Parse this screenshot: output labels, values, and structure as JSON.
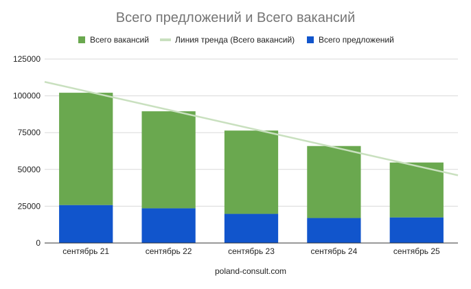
{
  "chart_data": {
    "type": "bar",
    "stacked": true,
    "title": "Всего предложений и Всего вакансий",
    "xlabel": "poland-consult.com",
    "ylabel": "",
    "ylim": [
      0,
      125000
    ],
    "yticks": [
      0,
      25000,
      50000,
      75000,
      100000,
      125000
    ],
    "yticklabels": [
      "0",
      "25000",
      "50000",
      "75000",
      "100000",
      "125000"
    ],
    "categories": [
      "сентябрь 21",
      "сентябрь 22",
      "сентябрь 23",
      "сентябрь 24",
      "сентябрь 25"
    ],
    "series": [
      {
        "name": "Всего предложений",
        "color": "#1155cc",
        "values": [
          25800,
          23600,
          19800,
          17000,
          17400
        ]
      },
      {
        "name": "Всего вакансий",
        "color": "#6aa84f",
        "values": [
          76300,
          65900,
          56600,
          48900,
          37300
        ]
      }
    ],
    "trendline": {
      "name": "Линия тренда (Всего вакансий)",
      "color": "#c9e0bf",
      "start": 109500,
      "end": 46000
    },
    "legend": {
      "position": "top",
      "items": [
        {
          "label": "Всего вакансий",
          "color": "#6aa84f",
          "kind": "box"
        },
        {
          "label": "Линия тренда (Всего вакансий)",
          "color": "#c9e0bf",
          "kind": "line"
        },
        {
          "label": "Всего предложений",
          "color": "#1155cc",
          "kind": "box"
        }
      ]
    },
    "grid": true
  }
}
